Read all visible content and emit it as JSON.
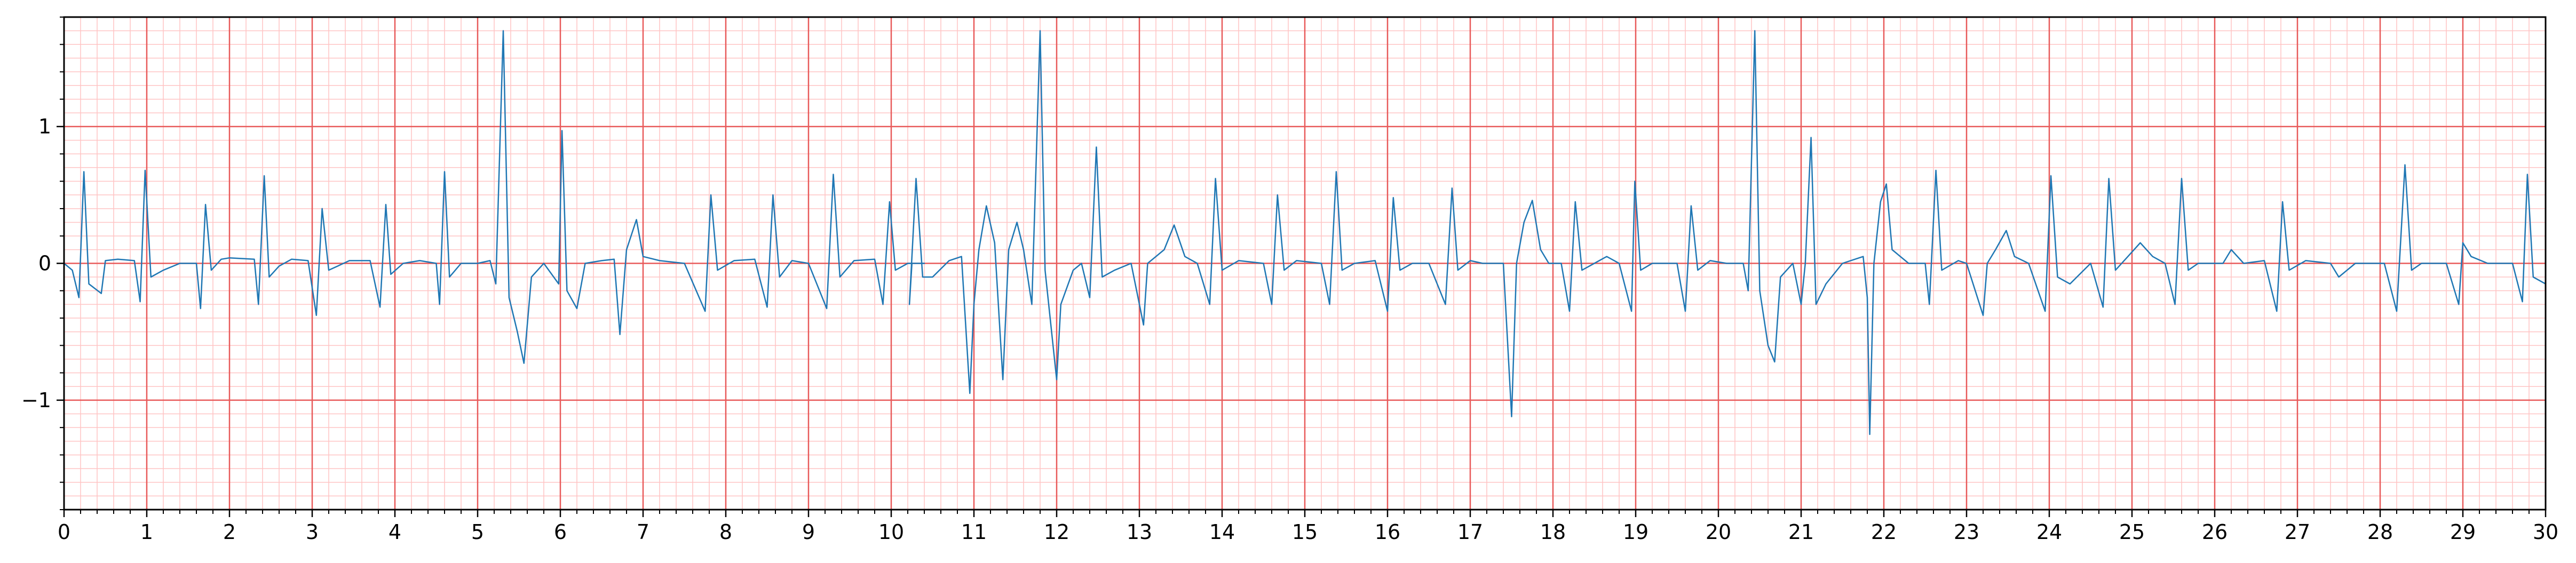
{
  "chart_data": {
    "type": "line",
    "title": "",
    "xlabel": "",
    "ylabel": "",
    "xlim": [
      0,
      30
    ],
    "ylim": [
      -1.8,
      1.8
    ],
    "x_ticks": [
      0,
      1,
      2,
      3,
      4,
      5,
      6,
      7,
      8,
      9,
      10,
      11,
      12,
      13,
      14,
      15,
      16,
      17,
      18,
      19,
      20,
      21,
      22,
      23,
      24,
      25,
      26,
      27,
      28,
      29,
      30
    ],
    "x_tick_labels": [
      "0",
      "1",
      "2",
      "3",
      "4",
      "5",
      "6",
      "7",
      "8",
      "9",
      "10",
      "11",
      "12",
      "13",
      "14",
      "15",
      "16",
      "17",
      "18",
      "19",
      "20",
      "21",
      "22",
      "23",
      "24",
      "25",
      "26",
      "27",
      "28",
      "29",
      "30"
    ],
    "y_ticks": [
      -1,
      0,
      1
    ],
    "y_tick_labels": [
      "−1",
      "0",
      "1"
    ],
    "grid": {
      "major_x_step": 1,
      "minor_x_step": 0.2,
      "major_y_step": 1,
      "minor_y_step": 0.1,
      "major_color": "#e85a5a",
      "minor_color": "#ffc4c4"
    },
    "series": [
      {
        "color": "#1f77b4",
        "points": [
          [
            0,
            0
          ],
          [
            0.1,
            -0.05
          ],
          [
            0.18,
            -0.25
          ],
          [
            0.24,
            0.67
          ],
          [
            0.3,
            -0.15
          ],
          [
            0.45,
            -0.22
          ],
          [
            0.5,
            0.02
          ],
          [
            0.65,
            0.03
          ],
          [
            0.85,
            0.02
          ],
          [
            0.92,
            -0.28
          ],
          [
            0.98,
            0.68
          ],
          [
            1.05,
            -0.1
          ],
          [
            1.2,
            -0.05
          ],
          [
            1.4,
            0.0
          ],
          [
            1.6,
            0.0
          ],
          [
            1.65,
            -0.33
          ],
          [
            1.71,
            0.43
          ],
          [
            1.78,
            -0.05
          ],
          [
            1.9,
            0.03
          ],
          [
            2.0,
            0.04
          ],
          [
            2.3,
            0.03
          ],
          [
            2.35,
            -0.3
          ],
          [
            2.42,
            0.64
          ],
          [
            2.48,
            -0.1
          ],
          [
            2.6,
            -0.02
          ],
          [
            2.75,
            0.03
          ],
          [
            2.95,
            0.02
          ],
          [
            3.05,
            -0.38
          ],
          [
            3.12,
            0.4
          ],
          [
            3.2,
            -0.05
          ],
          [
            3.45,
            0.02
          ],
          [
            3.7,
            0.02
          ],
          [
            3.82,
            -0.32
          ],
          [
            3.89,
            0.43
          ],
          [
            3.95,
            -0.08
          ],
          [
            4.1,
            0.0
          ],
          [
            4.3,
            0.02
          ],
          [
            4.5,
            0.0
          ],
          [
            4.54,
            -0.3
          ],
          [
            4.6,
            0.67
          ],
          [
            4.66,
            -0.1
          ],
          [
            4.8,
            0.0
          ],
          [
            5.0,
            0.0
          ],
          [
            5.15,
            0.02
          ],
          [
            5.22,
            -0.15
          ],
          [
            5.31,
            1.7
          ],
          [
            5.38,
            -0.25
          ],
          [
            5.48,
            -0.5
          ],
          [
            5.56,
            -0.73
          ],
          [
            5.65,
            -0.1
          ],
          [
            5.8,
            0.0
          ],
          [
            5.98,
            -0.15
          ],
          [
            6.02,
            0.97
          ],
          [
            6.08,
            -0.2
          ],
          [
            6.2,
            -0.33
          ],
          [
            6.3,
            0.0
          ],
          [
            6.5,
            0.02
          ],
          [
            6.65,
            0.03
          ],
          [
            6.72,
            -0.52
          ],
          [
            6.8,
            0.1
          ],
          [
            6.92,
            0.32
          ],
          [
            7.0,
            0.05
          ],
          [
            7.2,
            0.02
          ],
          [
            7.5,
            0.0
          ],
          [
            7.75,
            -0.35
          ],
          [
            7.82,
            0.5
          ],
          [
            7.9,
            -0.05
          ],
          [
            8.1,
            0.02
          ],
          [
            8.35,
            0.03
          ],
          [
            8.5,
            -0.32
          ],
          [
            8.57,
            0.5
          ],
          [
            8.65,
            -0.1
          ],
          [
            8.8,
            0.02
          ],
          [
            9.0,
            0.0
          ],
          [
            9.22,
            -0.33
          ],
          [
            9.3,
            0.65
          ],
          [
            9.38,
            -0.1
          ],
          [
            9.55,
            0.02
          ],
          [
            9.8,
            0.03
          ],
          [
            9.9,
            -0.3
          ],
          [
            9.98,
            0.45
          ],
          [
            10.05,
            -0.05
          ],
          [
            10.2,
            0.0
          ],
          [
            10.4,
            0.0
          ],
          [
            10.25,
            0.0
          ],
          [
            10.22,
            -0.3
          ],
          [
            10.3,
            0.62
          ],
          [
            10.38,
            -0.1
          ],
          [
            10.5,
            -0.1
          ],
          [
            10.7,
            0.02
          ],
          [
            10.85,
            0.05
          ],
          [
            10.95,
            -0.95
          ],
          [
            11.0,
            -0.3
          ],
          [
            11.06,
            0.1
          ],
          [
            11.15,
            0.42
          ],
          [
            11.25,
            0.15
          ],
          [
            11.35,
            -0.85
          ],
          [
            11.42,
            0.1
          ],
          [
            11.52,
            0.3
          ],
          [
            11.6,
            0.1
          ],
          [
            11.7,
            -0.3
          ],
          [
            11.8,
            1.7
          ],
          [
            11.86,
            -0.05
          ],
          [
            12.0,
            -0.85
          ],
          [
            12.05,
            -0.3
          ],
          [
            12.2,
            -0.05
          ],
          [
            12.3,
            0.0
          ],
          [
            12.4,
            -0.25
          ],
          [
            12.48,
            0.85
          ],
          [
            12.55,
            -0.1
          ],
          [
            12.7,
            -0.05
          ],
          [
            12.9,
            0.0
          ],
          [
            13.05,
            -0.45
          ],
          [
            13.1,
            0.0
          ],
          [
            13.3,
            0.1
          ],
          [
            13.42,
            0.28
          ],
          [
            13.55,
            0.05
          ],
          [
            13.7,
            0.0
          ],
          [
            13.85,
            -0.3
          ],
          [
            13.92,
            0.62
          ],
          [
            14.0,
            -0.05
          ],
          [
            14.2,
            0.02
          ],
          [
            14.5,
            0.0
          ],
          [
            14.6,
            -0.3
          ],
          [
            14.67,
            0.5
          ],
          [
            14.75,
            -0.05
          ],
          [
            14.9,
            0.02
          ],
          [
            15.2,
            0.0
          ],
          [
            15.3,
            -0.3
          ],
          [
            15.38,
            0.67
          ],
          [
            15.45,
            -0.05
          ],
          [
            15.6,
            0.0
          ],
          [
            15.85,
            0.02
          ],
          [
            16.0,
            -0.35
          ],
          [
            16.07,
            0.48
          ],
          [
            16.15,
            -0.05
          ],
          [
            16.3,
            0.0
          ],
          [
            16.5,
            0.0
          ],
          [
            16.7,
            -0.3
          ],
          [
            16.78,
            0.55
          ],
          [
            16.85,
            -0.05
          ],
          [
            17.0,
            0.02
          ],
          [
            17.15,
            0.0
          ],
          [
            17.4,
            0.0
          ],
          [
            17.5,
            -1.12
          ],
          [
            17.56,
            0.0
          ],
          [
            17.65,
            0.3
          ],
          [
            17.75,
            0.46
          ],
          [
            17.85,
            0.1
          ],
          [
            17.95,
            0.0
          ],
          [
            18.1,
            0.0
          ],
          [
            18.2,
            -0.35
          ],
          [
            18.27,
            0.45
          ],
          [
            18.35,
            -0.05
          ],
          [
            18.5,
            0.0
          ],
          [
            18.65,
            0.05
          ],
          [
            18.8,
            0.0
          ],
          [
            18.95,
            -0.35
          ],
          [
            18.99,
            0.6
          ],
          [
            19.06,
            -0.05
          ],
          [
            19.2,
            0.0
          ],
          [
            19.5,
            0.0
          ],
          [
            19.6,
            -0.35
          ],
          [
            19.67,
            0.42
          ],
          [
            19.75,
            -0.05
          ],
          [
            19.9,
            0.02
          ],
          [
            20.1,
            0.0
          ],
          [
            20.3,
            0.0
          ],
          [
            20.36,
            -0.2
          ],
          [
            20.44,
            1.7
          ],
          [
            20.5,
            -0.2
          ],
          [
            20.6,
            -0.6
          ],
          [
            20.68,
            -0.72
          ],
          [
            20.75,
            -0.1
          ],
          [
            20.9,
            0.0
          ],
          [
            21.0,
            -0.3
          ],
          [
            21.05,
            0.0
          ],
          [
            21.12,
            0.92
          ],
          [
            21.18,
            -0.3
          ],
          [
            21.3,
            -0.15
          ],
          [
            21.5,
            0.0
          ],
          [
            21.75,
            0.05
          ],
          [
            21.8,
            -0.25
          ],
          [
            21.83,
            -1.25
          ],
          [
            21.88,
            0.0
          ],
          [
            21.96,
            0.45
          ],
          [
            22.03,
            0.58
          ],
          [
            22.1,
            0.1
          ],
          [
            22.3,
            0.0
          ],
          [
            22.5,
            0.0
          ],
          [
            22.55,
            -0.3
          ],
          [
            22.63,
            0.68
          ],
          [
            22.7,
            -0.05
          ],
          [
            22.9,
            0.02
          ],
          [
            23.0,
            0.0
          ],
          [
            23.2,
            -0.38
          ],
          [
            23.25,
            0.0
          ],
          [
            23.35,
            0.1
          ],
          [
            23.48,
            0.24
          ],
          [
            23.58,
            0.05
          ],
          [
            23.75,
            0.0
          ],
          [
            23.95,
            -0.35
          ],
          [
            24.02,
            0.64
          ],
          [
            24.1,
            -0.1
          ],
          [
            24.25,
            -0.15
          ],
          [
            24.5,
            0.0
          ],
          [
            24.65,
            -0.32
          ],
          [
            24.72,
            0.62
          ],
          [
            24.8,
            -0.05
          ],
          [
            24.95,
            0.05
          ],
          [
            25.1,
            0.15
          ],
          [
            25.25,
            0.05
          ],
          [
            25.4,
            0.0
          ],
          [
            25.52,
            -0.3
          ],
          [
            25.6,
            0.62
          ],
          [
            25.68,
            -0.05
          ],
          [
            25.8,
            0.0
          ],
          [
            26.1,
            0.0
          ],
          [
            26.2,
            0.1
          ],
          [
            26.35,
            0.0
          ],
          [
            26.6,
            0.02
          ],
          [
            26.75,
            -0.35
          ],
          [
            26.82,
            0.45
          ],
          [
            26.9,
            -0.05
          ],
          [
            27.1,
            0.02
          ],
          [
            27.4,
            0.0
          ],
          [
            27.5,
            -0.1
          ],
          [
            27.7,
            0.0
          ],
          [
            28.05,
            0.0
          ],
          [
            28.2,
            -0.35
          ],
          [
            28.3,
            0.72
          ],
          [
            28.38,
            -0.05
          ],
          [
            28.5,
            0.0
          ],
          [
            28.8,
            0.0
          ],
          [
            28.95,
            -0.3
          ],
          [
            29.0,
            0.15
          ],
          [
            29.1,
            0.05
          ],
          [
            29.3,
            0.0
          ],
          [
            29.6,
            0.0
          ],
          [
            29.72,
            -0.28
          ],
          [
            29.78,
            0.65
          ],
          [
            29.85,
            -0.1
          ],
          [
            30.0,
            -0.15
          ]
        ]
      }
    ]
  }
}
